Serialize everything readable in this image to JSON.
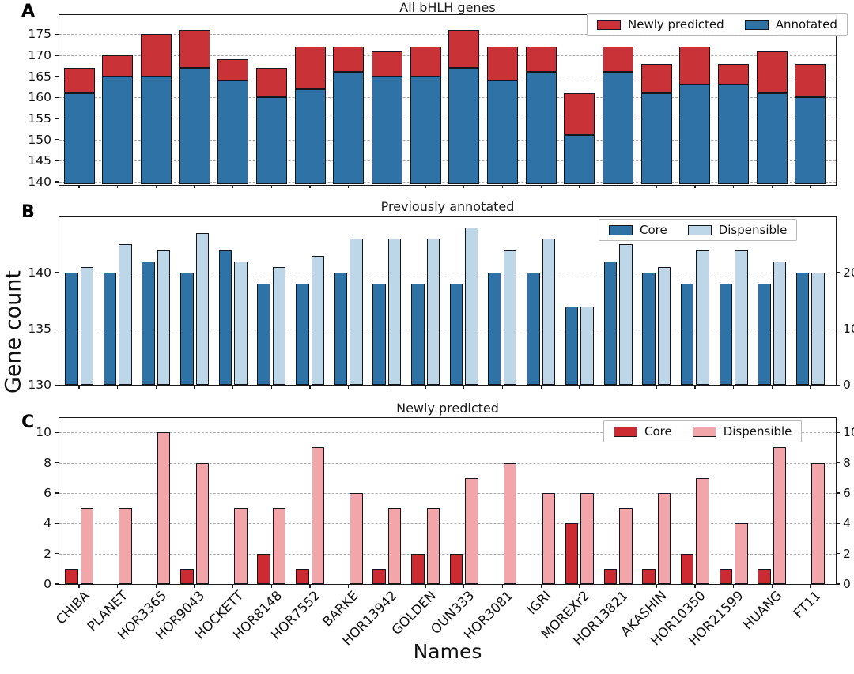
{
  "figure": {
    "y_axis_label": "Gene count",
    "x_axis_label": "Names",
    "categories": [
      "CHIBA",
      "PLANET",
      "HOR3365",
      "HOR9043",
      "HOCKETT",
      "HOR8148",
      "HOR7552",
      "BARKE",
      "HOR13942",
      "GOLDEN",
      "OUN333",
      "HOR3081",
      "IGRI",
      "MOREXr2",
      "HOR13821",
      "AKASHIN",
      "HOR10350",
      "HOR21599",
      "HUANG",
      "FT11"
    ]
  },
  "colors": {
    "annotated_blue": "#2f73a6",
    "newly_red": "#c93338",
    "core_blue": "#2f73a6",
    "dispensible_blue": "#bdd7e9",
    "core_red": "#cb2b31",
    "dispensible_pink": "#f3a6a9",
    "edge": "#15151e",
    "grid": "#ababab"
  },
  "chart_data": [
    {
      "id": "A",
      "letter": "A",
      "type": "bar",
      "stacked": true,
      "title": "All bHLH genes",
      "legend_labels": [
        "Newly predicted",
        "Annotated"
      ],
      "legend_color_keys": [
        "newly_red",
        "annotated_blue"
      ],
      "axes": {
        "left": {
          "min": 139.35,
          "max": 179.65,
          "ticks": [
            175,
            170,
            165,
            160,
            155,
            150,
            145,
            140
          ]
        }
      },
      "series": [
        {
          "name": "Annotated",
          "axis": "left",
          "color_key": "annotated_blue",
          "values": [
            161,
            165,
            165,
            167,
            164,
            160,
            162,
            166,
            165,
            165,
            167,
            164,
            166,
            151,
            166,
            161,
            163,
            163,
            161,
            160
          ]
        },
        {
          "name": "Newly predicted",
          "axis": "left",
          "color_key": "newly_red",
          "values": [
            6,
            5,
            10,
            9,
            5,
            7,
            10,
            6,
            6,
            7,
            9,
            8,
            6,
            10,
            6,
            7,
            9,
            5,
            10,
            8
          ]
        }
      ]
    },
    {
      "id": "B",
      "letter": "B",
      "type": "bar",
      "grouped": true,
      "title": "Previously annotated",
      "legend_labels": [
        "Core",
        "Dispensible"
      ],
      "legend_color_keys": [
        "core_blue",
        "dispensible_blue"
      ],
      "axes": {
        "left": {
          "min": 130,
          "max": 145,
          "ticks": [
            140,
            135,
            130
          ]
        },
        "right": {
          "min": 0,
          "max": 30,
          "ticks": [
            20,
            10,
            0
          ]
        }
      },
      "series": [
        {
          "name": "Core",
          "axis": "left",
          "color_key": "core_blue",
          "values": [
            140,
            140,
            141,
            140,
            142,
            139,
            139,
            140,
            139,
            139,
            139,
            140,
            140,
            137,
            141,
            140,
            139,
            139,
            139,
            140
          ]
        },
        {
          "name": "Dispensible",
          "axis": "right",
          "color_key": "dispensible_blue",
          "values": [
            21,
            25,
            24,
            27,
            22,
            21,
            23,
            26,
            26,
            26,
            28,
            24,
            26,
            14,
            25,
            21,
            24,
            24,
            22,
            20
          ]
        }
      ]
    },
    {
      "id": "C",
      "letter": "C",
      "type": "bar",
      "grouped": true,
      "title": "Newly predicted",
      "legend_labels": [
        "Core",
        "Dispensible"
      ],
      "legend_color_keys": [
        "core_red",
        "dispensible_pink"
      ],
      "axes": {
        "left": {
          "min": 0,
          "max": 10.95,
          "ticks": [
            10,
            8,
            6,
            4,
            2,
            0
          ]
        },
        "right": {
          "min": 0,
          "max": 10.95,
          "ticks": [
            10,
            8,
            6,
            4,
            2,
            0
          ]
        }
      },
      "series": [
        {
          "name": "Core",
          "axis": "left",
          "color_key": "core_red",
          "values": [
            1,
            0,
            0,
            1,
            0,
            2,
            1,
            0,
            1,
            2,
            2,
            0,
            0,
            4,
            1,
            1,
            2,
            1,
            1,
            0
          ]
        },
        {
          "name": "Dispensible",
          "axis": "right",
          "color_key": "dispensible_pink",
          "values": [
            5,
            5,
            10,
            8,
            5,
            5,
            9,
            6,
            5,
            5,
            7,
            8,
            6,
            6,
            5,
            6,
            7,
            4,
            9,
            8
          ]
        }
      ]
    }
  ]
}
